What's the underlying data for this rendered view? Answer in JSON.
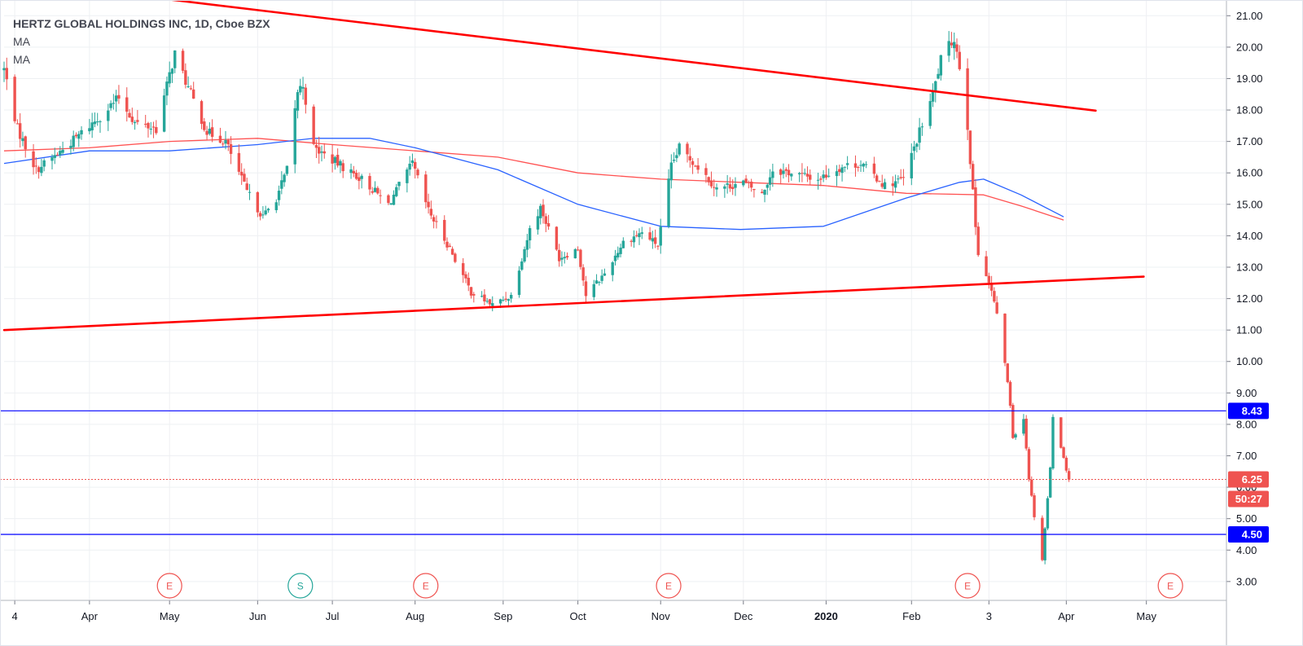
{
  "legend": {
    "title": "HERTZ GLOBAL HOLDINGS INC, 1D, Cboe BZX",
    "ma_1": "MA",
    "ma_2": "MA"
  },
  "colors": {
    "up": "#26a69a",
    "down": "#ef5350",
    "trendline": "#ff0000",
    "hline": "#0000ff",
    "ma_fast": "#2962ff",
    "ma_slow": "#ff5252",
    "grid": "#eef0f3"
  },
  "chart_data": {
    "type": "candlestick",
    "title": "HERTZ GLOBAL HOLDINGS INC, 1D, Cboe BZX",
    "ylim": [
      2.4,
      21.5
    ],
    "y_ticks": [
      "3.00",
      "4.00",
      "5.00",
      "6.00",
      "7.00",
      "8.00",
      "9.00",
      "10.00",
      "11.00",
      "12.00",
      "13.00",
      "14.00",
      "15.00",
      "16.00",
      "17.00",
      "18.00",
      "19.00",
      "20.00",
      "21.00"
    ],
    "x_ticks": [
      {
        "label": "4",
        "date": "2019-03-04"
      },
      {
        "label": "Apr",
        "date": "2019-04-01"
      },
      {
        "label": "May",
        "date": "2019-05-01"
      },
      {
        "label": "Jun",
        "date": "2019-06-03"
      },
      {
        "label": "Jul",
        "date": "2019-07-01"
      },
      {
        "label": "Aug",
        "date": "2019-08-01"
      },
      {
        "label": "Sep",
        "date": "2019-09-03"
      },
      {
        "label": "Oct",
        "date": "2019-10-01"
      },
      {
        "label": "Nov",
        "date": "2019-11-01"
      },
      {
        "label": "Dec",
        "date": "2019-12-02"
      },
      {
        "label": "2020",
        "date": "2020-01-02",
        "bold": true
      },
      {
        "label": "Feb",
        "date": "2020-02-03"
      },
      {
        "label": "3",
        "date": "2020-03-03"
      },
      {
        "label": "Apr",
        "date": "2020-04-01"
      },
      {
        "label": "May",
        "date": "2020-05-01"
      }
    ],
    "anchors": [
      [
        "2019-02-28",
        19.3
      ],
      [
        "2019-03-05",
        17.4
      ],
      [
        "2019-03-12",
        16.1
      ],
      [
        "2019-03-20",
        16.6
      ],
      [
        "2019-03-28",
        17.2
      ],
      [
        "2019-04-05",
        17.8
      ],
      [
        "2019-04-12",
        18.4
      ],
      [
        "2019-04-18",
        17.6
      ],
      [
        "2019-04-26",
        17.4
      ],
      [
        "2019-05-03",
        19.8
      ],
      [
        "2019-05-08",
        18.7
      ],
      [
        "2019-05-15",
        17.3
      ],
      [
        "2019-05-22",
        17.0
      ],
      [
        "2019-05-30",
        15.4
      ],
      [
        "2019-06-05",
        14.6
      ],
      [
        "2019-06-10",
        15.2
      ],
      [
        "2019-06-14",
        16.1
      ],
      [
        "2019-06-18",
        18.6
      ],
      [
        "2019-06-20",
        18.8
      ],
      [
        "2019-06-24",
        16.8
      ],
      [
        "2019-07-03",
        16.3
      ],
      [
        "2019-07-12",
        15.8
      ],
      [
        "2019-07-22",
        15.0
      ],
      [
        "2019-07-31",
        16.3
      ],
      [
        "2019-08-06",
        14.8
      ],
      [
        "2019-08-14",
        13.6
      ],
      [
        "2019-08-22",
        12.2
      ],
      [
        "2019-08-30",
        11.8
      ],
      [
        "2019-09-06",
        12.1
      ],
      [
        "2019-09-13",
        14.2
      ],
      [
        "2019-09-17",
        14.9
      ],
      [
        "2019-09-24",
        13.3
      ],
      [
        "2019-10-01",
        13.6
      ],
      [
        "2019-10-04",
        12.1
      ],
      [
        "2019-10-11",
        12.8
      ],
      [
        "2019-10-18",
        13.8
      ],
      [
        "2019-10-25",
        14.1
      ],
      [
        "2019-10-31",
        13.7
      ],
      [
        "2019-11-05",
        16.2
      ],
      [
        "2019-11-08",
        16.8
      ],
      [
        "2019-11-15",
        16.2
      ],
      [
        "2019-11-22",
        15.5
      ],
      [
        "2019-12-02",
        15.7
      ],
      [
        "2019-12-09",
        15.3
      ],
      [
        "2019-12-13",
        16.1
      ],
      [
        "2019-12-20",
        16.0
      ],
      [
        "2019-12-30",
        15.8
      ],
      [
        "2020-01-08",
        16.2
      ],
      [
        "2020-01-15",
        16.3
      ],
      [
        "2020-01-24",
        15.6
      ],
      [
        "2020-01-31",
        15.8
      ],
      [
        "2020-02-06",
        17.3
      ],
      [
        "2020-02-11",
        18.5
      ],
      [
        "2020-02-14",
        19.6
      ],
      [
        "2020-02-19",
        20.3
      ],
      [
        "2020-02-21",
        19.4
      ],
      [
        "2020-02-24",
        17.5
      ],
      [
        "2020-02-25",
        16.4
      ],
      [
        "2020-02-27",
        14.3
      ],
      [
        "2020-02-28",
        13.5
      ],
      [
        "2020-03-03",
        12.5
      ],
      [
        "2020-03-05",
        11.9
      ],
      [
        "2020-03-09",
        10.0
      ],
      [
        "2020-03-11",
        8.6
      ],
      [
        "2020-03-12",
        7.6
      ],
      [
        "2020-03-16",
        8.2
      ],
      [
        "2020-03-18",
        6.3
      ],
      [
        "2020-03-20",
        5.1
      ],
      [
        "2020-03-23",
        3.7
      ],
      [
        "2020-03-24",
        4.7
      ],
      [
        "2020-03-26",
        6.6
      ],
      [
        "2020-03-27",
        8.3
      ],
      [
        "2020-03-30",
        7.3
      ],
      [
        "2020-03-31",
        6.9
      ],
      [
        "2020-04-02",
        6.25
      ]
    ],
    "ma_fast": [
      [
        "2019-02-28",
        16.3
      ],
      [
        "2019-04-01",
        16.7
      ],
      [
        "2019-05-01",
        16.7
      ],
      [
        "2019-06-03",
        16.9
      ],
      [
        "2019-06-24",
        17.1
      ],
      [
        "2019-07-15",
        17.1
      ],
      [
        "2019-08-01",
        16.8
      ],
      [
        "2019-09-01",
        16.1
      ],
      [
        "2019-10-01",
        15.0
      ],
      [
        "2019-11-01",
        14.3
      ],
      [
        "2019-12-01",
        14.2
      ],
      [
        "2020-01-01",
        14.3
      ],
      [
        "2020-02-01",
        15.2
      ],
      [
        "2020-02-21",
        15.7
      ],
      [
        "2020-03-01",
        15.8
      ],
      [
        "2020-03-15",
        15.3
      ],
      [
        "2020-03-31",
        14.6
      ]
    ],
    "ma_slow": [
      [
        "2019-02-28",
        16.7
      ],
      [
        "2019-04-01",
        16.8
      ],
      [
        "2019-05-01",
        17.0
      ],
      [
        "2019-06-03",
        17.1
      ],
      [
        "2019-07-01",
        16.9
      ],
      [
        "2019-08-01",
        16.7
      ],
      [
        "2019-09-01",
        16.5
      ],
      [
        "2019-10-01",
        16.0
      ],
      [
        "2019-11-01",
        15.8
      ],
      [
        "2019-12-01",
        15.7
      ],
      [
        "2020-01-01",
        15.6
      ],
      [
        "2020-02-01",
        15.35
      ],
      [
        "2020-03-01",
        15.3
      ],
      [
        "2020-03-15",
        14.95
      ],
      [
        "2020-03-31",
        14.5
      ]
    ],
    "trendlines": [
      {
        "name": "upper-trendline",
        "from": [
          "2019-04-08",
          21.75
        ],
        "to": [
          "2020-04-12",
          17.98
        ]
      },
      {
        "name": "lower-trendline",
        "from": [
          "2019-02-28",
          11.0
        ],
        "to": [
          "2020-04-30",
          12.7
        ]
      }
    ],
    "hlines": [
      {
        "value": 8.43,
        "label": "8.43"
      },
      {
        "value": 4.5,
        "label": "4.50"
      }
    ],
    "last_price": {
      "value": 6.25,
      "label": "6.25",
      "countdown": "50:27"
    },
    "events": [
      {
        "label": "E",
        "date": "2019-05-01",
        "kind": "earnings"
      },
      {
        "label": "S",
        "date": "2019-06-19",
        "kind": "split"
      },
      {
        "label": "E",
        "date": "2019-08-05",
        "kind": "earnings"
      },
      {
        "label": "E",
        "date": "2019-11-04",
        "kind": "earnings"
      },
      {
        "label": "E",
        "date": "2020-02-24",
        "kind": "earnings"
      },
      {
        "label": "E",
        "date": "2020-05-10",
        "kind": "earnings"
      }
    ]
  }
}
